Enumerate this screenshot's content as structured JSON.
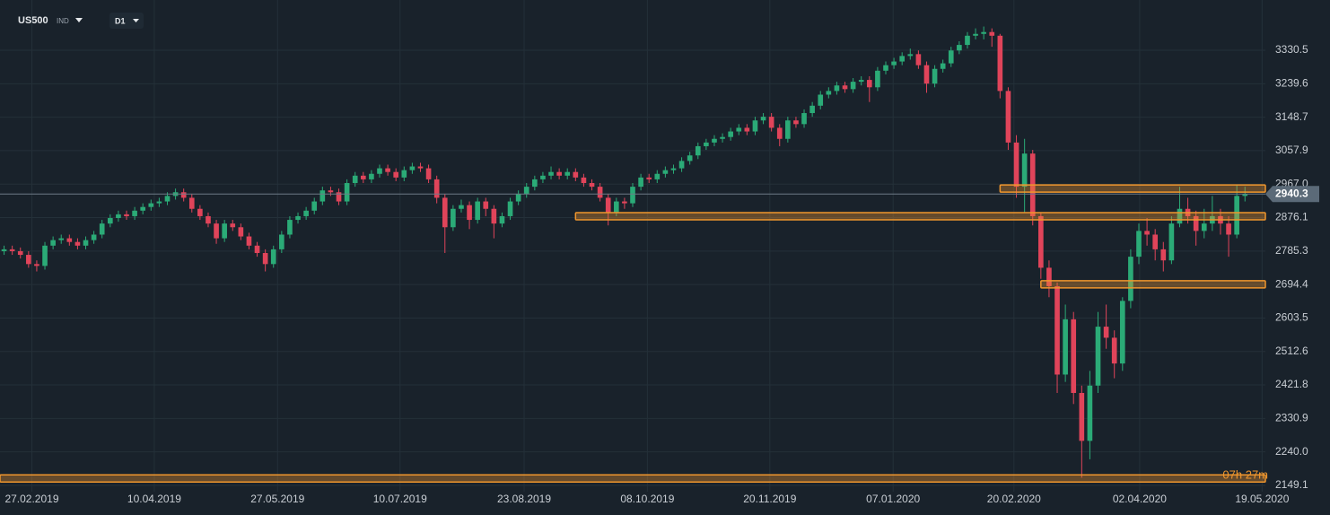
{
  "header": {
    "symbol": "US500",
    "market": "IND",
    "timeframe": "D1"
  },
  "chart_data": {
    "type": "candlestick",
    "open": [
      2785,
      2790,
      2785,
      2775,
      2750,
      2745,
      2800,
      2815,
      2820,
      2810,
      2800,
      2815,
      2830,
      2860,
      2875,
      2885,
      2880,
      2895,
      2905,
      2915,
      2920,
      2935,
      2945,
      2930,
      2900,
      2880,
      2860,
      2820,
      2860,
      2850,
      2825,
      2800,
      2780,
      2750,
      2790,
      2830,
      2870,
      2880,
      2895,
      2920,
      2950,
      2945,
      2920,
      2970,
      2990,
      2980,
      2995,
      3010,
      3000,
      2985,
      3005,
      3015,
      3010,
      2980,
      2930,
      2850,
      2900,
      2910,
      2870,
      2920,
      2900,
      2860,
      2880,
      2920,
      2940,
      2960,
      2980,
      2990,
      3000,
      2990,
      3000,
      2985,
      2970,
      2960,
      2930,
      2890,
      2920,
      2915,
      2960,
      2985,
      2980,
      2995,
      3005,
      3010,
      3030,
      3045,
      3070,
      3080,
      3090,
      3095,
      3110,
      3120,
      3110,
      3140,
      3150,
      3120,
      3090,
      3140,
      3130,
      3160,
      3180,
      3210,
      3220,
      3235,
      3225,
      3245,
      3250,
      3230,
      3275,
      3290,
      3300,
      3315,
      3320,
      3290,
      3240,
      3280,
      3295,
      3330,
      3345,
      3370,
      3375,
      3380,
      3370,
      3220,
      3080,
      2960,
      3050,
      2880,
      2740,
      2690,
      2450,
      2600,
      2400,
      2270,
      2420,
      2580,
      2550,
      2480,
      2650,
      2770,
      2840,
      2830,
      2790,
      2760,
      2860,
      2900,
      2880,
      2840,
      2860,
      2880,
      2860,
      2830,
      2935
    ],
    "high": [
      2800,
      2800,
      2795,
      2785,
      2760,
      2810,
      2825,
      2830,
      2830,
      2820,
      2825,
      2840,
      2870,
      2885,
      2895,
      2895,
      2905,
      2915,
      2925,
      2930,
      2945,
      2955,
      2955,
      2940,
      2910,
      2890,
      2870,
      2870,
      2870,
      2860,
      2835,
      2810,
      2790,
      2800,
      2840,
      2880,
      2890,
      2905,
      2930,
      2960,
      2960,
      2955,
      2980,
      3000,
      3000,
      3005,
      3020,
      3020,
      3010,
      3015,
      3025,
      3025,
      3020,
      2990,
      2940,
      2910,
      2925,
      2920,
      2930,
      2930,
      2910,
      2890,
      2930,
      2950,
      2970,
      2990,
      3000,
      3015,
      3010,
      3010,
      3010,
      2995,
      2980,
      2970,
      2940,
      2930,
      2930,
      2970,
      2995,
      2995,
      3005,
      3015,
      3020,
      3040,
      3055,
      3080,
      3090,
      3100,
      3105,
      3120,
      3130,
      3130,
      3150,
      3160,
      3160,
      3130,
      3150,
      3150,
      3170,
      3190,
      3220,
      3230,
      3245,
      3245,
      3255,
      3260,
      3260,
      3285,
      3300,
      3310,
      3325,
      3335,
      3330,
      3300,
      3290,
      3305,
      3340,
      3355,
      3380,
      3390,
      3395,
      3390,
      3375,
      3230,
      3100,
      3090,
      3060,
      2890,
      2760,
      2700,
      2640,
      2620,
      2420,
      2460,
      2620,
      2640,
      2570,
      2660,
      2790,
      2860,
      2875,
      2845,
      2810,
      2880,
      2960,
      2930,
      2895,
      2900,
      2935,
      2900,
      2880,
      2965,
      2960
    ],
    "low": [
      2775,
      2775,
      2765,
      2740,
      2730,
      2735,
      2790,
      2805,
      2800,
      2790,
      2790,
      2805,
      2820,
      2850,
      2865,
      2870,
      2870,
      2885,
      2895,
      2905,
      2910,
      2925,
      2920,
      2890,
      2870,
      2850,
      2805,
      2810,
      2840,
      2815,
      2790,
      2770,
      2730,
      2740,
      2780,
      2820,
      2860,
      2870,
      2885,
      2910,
      2935,
      2910,
      2910,
      2960,
      2970,
      2970,
      2985,
      2990,
      2975,
      2975,
      2995,
      3000,
      2970,
      2915,
      2780,
      2840,
      2890,
      2845,
      2860,
      2880,
      2820,
      2850,
      2870,
      2910,
      2930,
      2950,
      2970,
      2980,
      2980,
      2980,
      2975,
      2960,
      2950,
      2920,
      2855,
      2880,
      2900,
      2905,
      2950,
      2970,
      2970,
      2985,
      2995,
      3000,
      3020,
      3035,
      3060,
      3070,
      3080,
      3085,
      3100,
      3100,
      3100,
      3130,
      3110,
      3070,
      3080,
      3120,
      3120,
      3150,
      3170,
      3200,
      3210,
      3215,
      3215,
      3235,
      3190,
      3220,
      3265,
      3280,
      3290,
      3305,
      3280,
      3215,
      3230,
      3270,
      3285,
      3320,
      3335,
      3360,
      3360,
      3340,
      3200,
      3060,
      2930,
      2890,
      2855,
      2710,
      2660,
      2400,
      2430,
      2370,
      2170,
      2220,
      2400,
      2520,
      2440,
      2460,
      2630,
      2750,
      2800,
      2760,
      2730,
      2750,
      2850,
      2860,
      2800,
      2820,
      2840,
      2830,
      2770,
      2820,
      2920
    ],
    "close": [
      2790,
      2785,
      2775,
      2750,
      2745,
      2800,
      2815,
      2820,
      2810,
      2800,
      2815,
      2830,
      2860,
      2875,
      2885,
      2880,
      2895,
      2905,
      2915,
      2920,
      2935,
      2945,
      2930,
      2900,
      2880,
      2860,
      2820,
      2860,
      2850,
      2825,
      2800,
      2780,
      2750,
      2790,
      2830,
      2870,
      2880,
      2895,
      2920,
      2950,
      2945,
      2920,
      2970,
      2990,
      2980,
      2995,
      3010,
      3000,
      2985,
      3005,
      3015,
      3010,
      2980,
      2930,
      2850,
      2900,
      2910,
      2870,
      2920,
      2900,
      2860,
      2880,
      2920,
      2940,
      2960,
      2980,
      2990,
      3000,
      2990,
      3000,
      2985,
      2970,
      2960,
      2930,
      2890,
      2920,
      2915,
      2960,
      2985,
      2980,
      2995,
      3005,
      3010,
      3030,
      3045,
      3070,
      3080,
      3090,
      3095,
      3110,
      3120,
      3110,
      3140,
      3150,
      3120,
      3090,
      3140,
      3130,
      3160,
      3180,
      3210,
      3220,
      3235,
      3225,
      3245,
      3250,
      3230,
      3275,
      3290,
      3300,
      3315,
      3320,
      3290,
      3240,
      3280,
      3295,
      3330,
      3345,
      3370,
      3375,
      3380,
      3370,
      3220,
      3080,
      2960,
      3050,
      2880,
      2740,
      2690,
      2450,
      2600,
      2400,
      2270,
      2420,
      2580,
      2550,
      2480,
      2650,
      2770,
      2840,
      2830,
      2790,
      2760,
      2860,
      2900,
      2880,
      2840,
      2860,
      2880,
      2860,
      2830,
      2935,
      2940.3
    ],
    "up_color": "#2bab77",
    "down_color": "#e0445a",
    "xlim": [
      -0.5,
      154.5
    ],
    "xticks": [
      {
        "value": 3.4,
        "label": "27.02.2019"
      },
      {
        "value": 18.4,
        "label": "10.04.2019"
      },
      {
        "value": 33.5,
        "label": "27.05.2019"
      },
      {
        "value": 48.5,
        "label": "10.07.2019"
      },
      {
        "value": 63.7,
        "label": "23.08.2019"
      },
      {
        "value": 78.8,
        "label": "08.10.2019"
      },
      {
        "value": 93.8,
        "label": "20.11.2019"
      },
      {
        "value": 108.9,
        "label": "07.01.2020"
      },
      {
        "value": 123.7,
        "label": "20.02.2020"
      },
      {
        "value": 139.1,
        "label": "02.04.2020"
      },
      {
        "value": 154.1,
        "label": "19.05.2020"
      }
    ],
    "ylim": [
      2132,
      3467
    ],
    "yticks": [
      3330.5,
      3239.6,
      3148.7,
      3057.9,
      {
        "value": 2967,
        "label": "2967.0"
      },
      2876.1,
      2785.3,
      2694.4,
      2603.5,
      2512.6,
      2421.8,
      2330.9,
      {
        "value": 2240,
        "label": "2240.0"
      },
      2149.1
    ],
    "grid": true,
    "levels": [
      {
        "value": 2955,
        "start": 122
      },
      {
        "value": 2880,
        "start": 70
      },
      {
        "value": 2695,
        "start": 127
      },
      {
        "value": 2168,
        "start": -0.5
      }
    ],
    "level_color": "#f0962d",
    "countdown": "07h 27m"
  }
}
